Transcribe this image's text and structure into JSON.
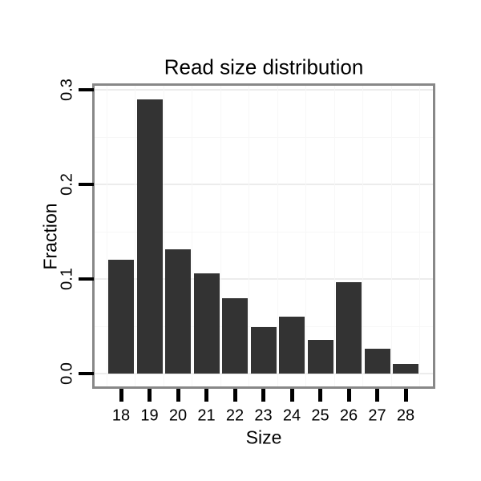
{
  "chart_data": {
    "type": "bar",
    "title": "Read size distribution",
    "xlabel": "Size",
    "ylabel": "Fraction",
    "categories": [
      "18",
      "19",
      "20",
      "21",
      "22",
      "23",
      "24",
      "25",
      "26",
      "27",
      "28"
    ],
    "values": [
      0.12,
      0.29,
      0.131,
      0.106,
      0.08,
      0.049,
      0.06,
      0.036,
      0.097,
      0.026,
      0.01
    ],
    "y_ticks": [
      0.0,
      0.1,
      0.2,
      0.3
    ],
    "y_tick_labels": [
      "0.0",
      "0.1",
      "0.2",
      "0.3"
    ],
    "y_minor_ticks": [
      0.05,
      0.15,
      0.25
    ],
    "ylim": [
      -0.015,
      0.305
    ],
    "grid": true,
    "legend": false,
    "colors": {
      "bar": "#333333",
      "panel_border": "#888888",
      "grid_major": "#ececec",
      "grid_minor": "#f7f7f7",
      "tick": "#000000",
      "text": "#000000",
      "background": "#ffffff"
    }
  }
}
